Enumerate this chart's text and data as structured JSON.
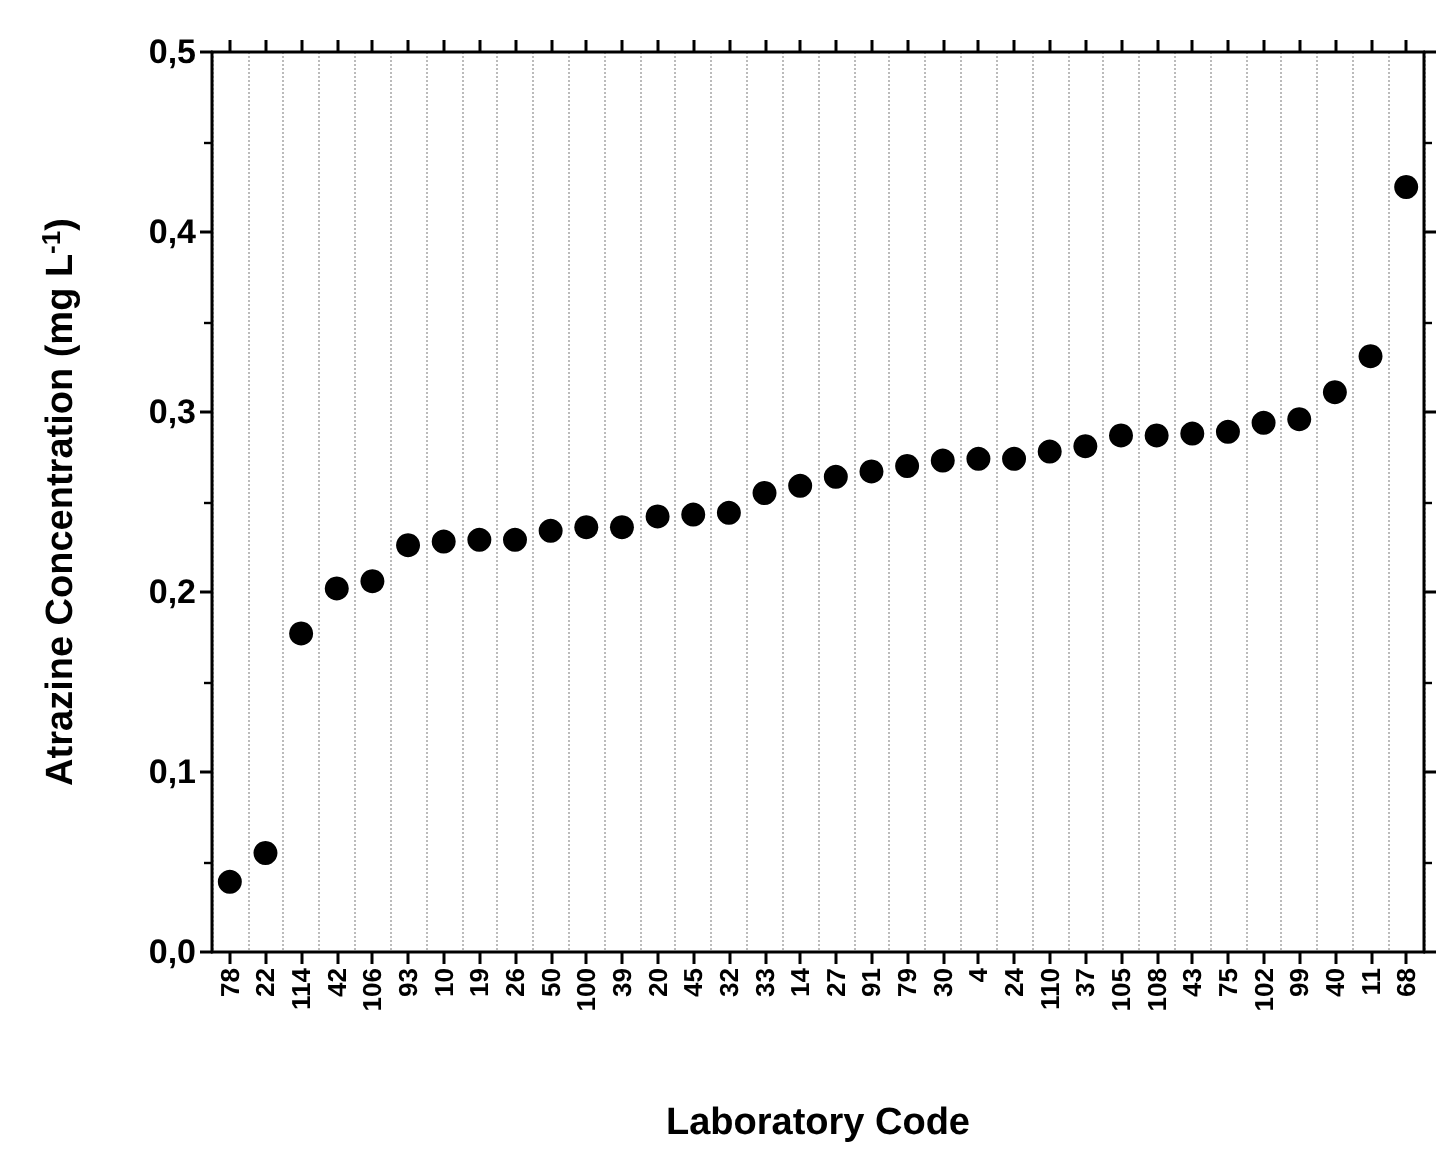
{
  "chart_data": {
    "type": "scatter",
    "xlabel": "Laboratory Code",
    "ylabel": "Atrazine Concentration (mg L$^{-1}$)",
    "categories": [
      "78",
      "22",
      "114",
      "42",
      "106",
      "93",
      "10",
      "19",
      "26",
      "50",
      "100",
      "39",
      "20",
      "45",
      "32",
      "33",
      "14",
      "27",
      "91",
      "79",
      "30",
      "4",
      "24",
      "110",
      "37",
      "105",
      "108",
      "43",
      "75",
      "102",
      "99",
      "40",
      "11",
      "68"
    ],
    "series": [
      {
        "color": "#000000",
        "values": [
          0.039,
          0.055,
          0.177,
          0.202,
          0.206,
          0.226,
          0.228,
          0.229,
          0.229,
          0.234,
          0.236,
          0.236,
          0.242,
          0.243,
          0.244,
          0.255,
          0.259,
          0.264,
          0.267,
          0.27,
          0.273,
          0.274,
          0.274,
          0.278,
          0.281,
          0.287,
          0.287,
          0.288,
          0.289,
          0.294,
          0.296,
          0.311,
          0.331,
          0.425
        ]
      }
    ],
    "ylim": [
      0,
      0.5
    ],
    "yticks": [
      {
        "value": 0,
        "label": "0,0"
      },
      {
        "value": 0.1,
        "label": "0,1"
      },
      {
        "value": 0.2,
        "label": "0,2"
      },
      {
        "value": 0.3,
        "label": "0,3"
      },
      {
        "value": 0.4,
        "label": "0,4"
      },
      {
        "value": 0.5,
        "label": "0,5"
      }
    ],
    "grid": "x",
    "marker": "circle"
  }
}
